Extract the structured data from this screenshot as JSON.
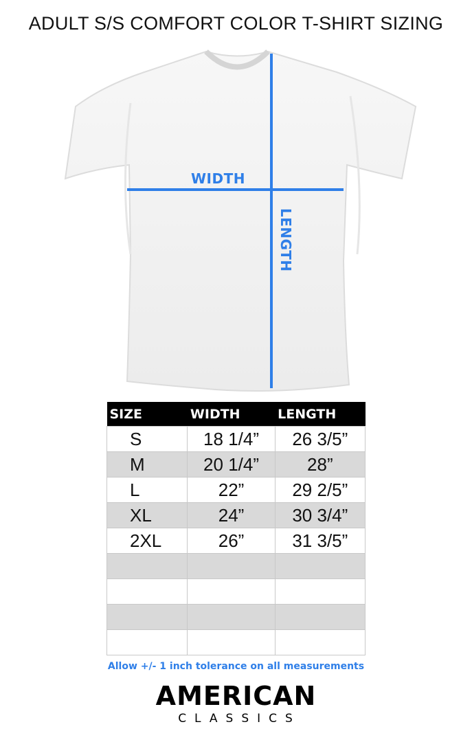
{
  "title": "ADULT S/S COMFORT COLOR T-SHIRT SIZING",
  "diagram": {
    "width_label": "WIDTH",
    "length_label": "LENGTH",
    "line_color": "#2f7fe8",
    "shirt_color": "#ffffff"
  },
  "table": {
    "headers": [
      "SIZE",
      "WIDTH",
      "LENGTH"
    ],
    "rows": [
      [
        "S",
        "18 1/4”",
        "26 3/5”"
      ],
      [
        "M",
        "20 1/4”",
        "28”"
      ],
      [
        "L",
        "22”",
        "29 2/5”"
      ],
      [
        "XL",
        "24”",
        "30 3/4”"
      ],
      [
        "2XL",
        "26”",
        "31 3/5”"
      ],
      [
        "",
        "",
        ""
      ],
      [
        "",
        "",
        ""
      ],
      [
        "",
        "",
        ""
      ],
      [
        "",
        "",
        ""
      ]
    ]
  },
  "note": "Allow +/- 1 inch tolerance on all measurements",
  "logo": {
    "line1": "AMERICAN",
    "line2": "CLASSICS"
  }
}
